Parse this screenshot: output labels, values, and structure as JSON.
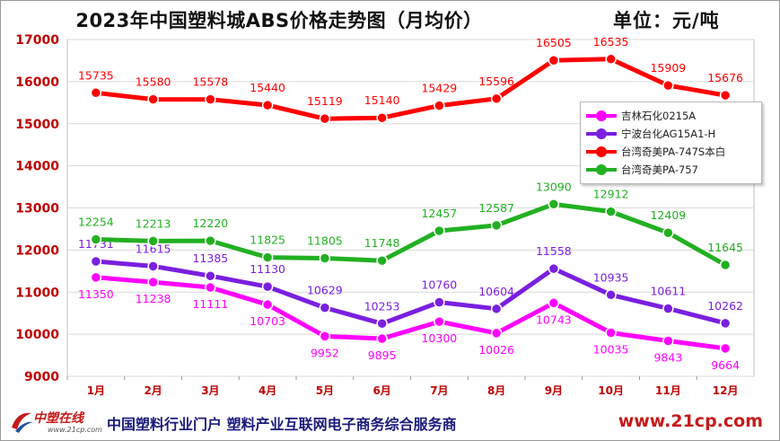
{
  "header": {
    "title": "2023年中国塑料城ABS价格走势图（月均价）",
    "unit_label": "单位：",
    "unit_value": "元/吨"
  },
  "footer": {
    "logo_text": "中塑在线",
    "logo_url": "www.21cp.com",
    "slogan": "中国塑料行业门户 塑料产业互联网电子商务综合服务商",
    "site": "www.21cp.com"
  },
  "colors": {
    "axis_label": "#c00000",
    "grid": "#d9d9d9"
  },
  "chart_data": {
    "type": "line",
    "title": "2023年中国塑料城ABS价格走势图（月均价）",
    "ylabel": "元/吨",
    "xlabel": "",
    "categories": [
      "1月",
      "2月",
      "3月",
      "4月",
      "5月",
      "6月",
      "7月",
      "8月",
      "9月",
      "10月",
      "11月",
      "12月"
    ],
    "ylim": [
      9000,
      17000
    ],
    "yticks": [
      9000,
      10000,
      11000,
      12000,
      13000,
      14000,
      15000,
      16000,
      17000
    ],
    "grid": true,
    "legend_position": "right",
    "series": [
      {
        "name": "吉林石化0215A",
        "color": "#ff00ff",
        "label_position": "below",
        "values": [
          11350,
          11238,
          11111,
          10703,
          9952,
          9895,
          10300,
          10026,
          10743,
          10035,
          9843,
          9664
        ]
      },
      {
        "name": "宁波台化AG15A1-H",
        "color": "#7a1fe0",
        "label_position": "above",
        "values": [
          11731,
          11615,
          11385,
          11130,
          10629,
          10253,
          10760,
          10604,
          11558,
          10935,
          10611,
          10262
        ]
      },
      {
        "name": "台湾奇美PA-747S本白",
        "color": "#ff0000",
        "label_position": "above",
        "values": [
          15735,
          15580,
          15578,
          15440,
          15119,
          15140,
          15429,
          15596,
          16505,
          16535,
          15909,
          15676
        ]
      },
      {
        "name": "台湾奇美PA-757",
        "color": "#22b022",
        "label_position": "above",
        "values": [
          12254,
          12213,
          12220,
          11825,
          11805,
          11748,
          12457,
          12587,
          13090,
          12912,
          12409,
          11645
        ]
      }
    ]
  }
}
